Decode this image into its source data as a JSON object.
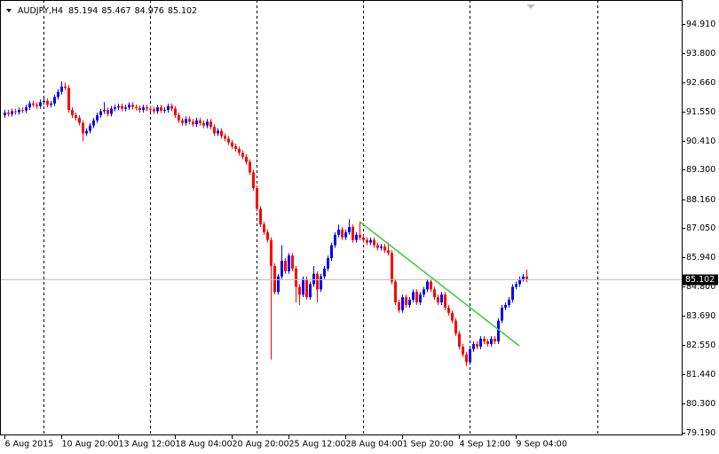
{
  "chart_data": {
    "type": "candlestick",
    "symbol": "AUDJPY,H4",
    "up_color": "#0000ff",
    "down_color": "#ff0000",
    "price_line_color": "#c0c0c0",
    "xlim": [
      -1.25,
      190.75
    ],
    "xticks": [
      {
        "value": 0,
        "label": "6 Aug 2015"
      },
      {
        "value": 16,
        "label": "10 Aug 20:00"
      },
      {
        "value": 32,
        "label": "13 Aug 12:00"
      },
      {
        "value": 48,
        "label": "18 Aug 04:00"
      },
      {
        "value": 64,
        "label": "20 Aug 20:00"
      },
      {
        "value": 80,
        "label": "25 Aug 12:00"
      },
      {
        "value": 96,
        "label": "28 Aug 04:00"
      },
      {
        "value": 112,
        "label": "1 Sep 20:00"
      },
      {
        "value": 128,
        "label": "4 Sep 12:00"
      },
      {
        "value": 144,
        "label": "9 Sep 04:00"
      }
    ],
    "ylim": [
      79.12,
      95.83
    ],
    "yticks": [
      {
        "value": 94.91,
        "label": "94.910"
      },
      {
        "value": 93.8,
        "label": "93.800"
      },
      {
        "value": 92.66,
        "label": "92.660"
      },
      {
        "value": 91.55,
        "label": "91.550"
      },
      {
        "value": 90.41,
        "label": "90.410"
      },
      {
        "value": 89.3,
        "label": "89.300"
      },
      {
        "value": 88.16,
        "label": "88.160"
      },
      {
        "value": 87.05,
        "label": "87.050"
      },
      {
        "value": 85.94,
        "label": "85.940"
      },
      {
        "value": 84.8,
        "label": "84.800"
      },
      {
        "value": 83.69,
        "label": "83.690"
      },
      {
        "value": 82.55,
        "label": "82.550"
      },
      {
        "value": 81.44,
        "label": "81.440"
      },
      {
        "value": 80.3,
        "label": "80.300"
      },
      {
        "value": 79.19,
        "label": "79.190"
      }
    ],
    "trendline": {
      "color": "#32cd32",
      "points": [
        [
          100,
          87.31
        ],
        [
          145,
          82.53
        ]
      ]
    },
    "candles": [
      [
        91.4,
        91.6,
        91.3,
        91.5
      ],
      [
        91.5,
        91.6,
        91.35,
        91.45
      ],
      [
        91.45,
        91.65,
        91.35,
        91.55
      ],
      [
        91.55,
        91.65,
        91.42,
        91.52
      ],
      [
        91.52,
        91.7,
        91.42,
        91.6
      ],
      [
        91.6,
        91.7,
        91.48,
        91.58
      ],
      [
        91.58,
        91.8,
        91.48,
        91.7
      ],
      [
        91.7,
        91.95,
        91.6,
        91.85
      ],
      [
        91.85,
        91.95,
        91.7,
        91.8
      ],
      [
        91.8,
        91.9,
        91.65,
        91.75
      ],
      [
        91.75,
        92.0,
        91.65,
        91.9
      ],
      [
        91.9,
        92.05,
        91.8,
        91.95
      ],
      [
        91.95,
        92.05,
        91.7,
        91.8
      ],
      [
        91.8,
        91.95,
        91.7,
        91.85
      ],
      [
        91.85,
        92.2,
        91.75,
        92.1
      ],
      [
        92.1,
        92.4,
        92.0,
        92.3
      ],
      [
        92.3,
        92.7,
        92.2,
        92.5
      ],
      [
        92.5,
        92.65,
        92.35,
        92.45
      ],
      [
        92.45,
        92.55,
        91.5,
        91.6
      ],
      [
        91.6,
        91.7,
        91.3,
        91.4
      ],
      [
        91.4,
        91.5,
        91.2,
        91.3
      ],
      [
        91.3,
        91.4,
        91.0,
        91.1
      ],
      [
        91.1,
        91.2,
        90.4,
        90.7
      ],
      [
        90.7,
        90.9,
        90.6,
        90.8
      ],
      [
        90.8,
        91.1,
        90.7,
        91.0
      ],
      [
        91.0,
        91.3,
        90.9,
        91.2
      ],
      [
        91.2,
        91.5,
        91.1,
        91.4
      ],
      [
        91.4,
        91.65,
        91.3,
        91.55
      ],
      [
        91.55,
        91.9,
        91.45,
        91.6
      ],
      [
        91.6,
        91.7,
        91.35,
        91.45
      ],
      [
        91.45,
        91.75,
        91.35,
        91.65
      ],
      [
        91.65,
        91.8,
        91.55,
        91.7
      ],
      [
        91.7,
        91.85,
        91.6,
        91.75
      ],
      [
        91.75,
        91.85,
        91.55,
        91.65
      ],
      [
        91.65,
        91.8,
        91.55,
        91.7
      ],
      [
        91.7,
        91.9,
        91.6,
        91.8
      ],
      [
        91.8,
        91.9,
        91.62,
        91.72
      ],
      [
        91.72,
        91.82,
        91.58,
        91.68
      ],
      [
        91.68,
        91.78,
        91.5,
        91.6
      ],
      [
        91.6,
        91.8,
        91.5,
        91.7
      ],
      [
        91.7,
        91.8,
        91.55,
        91.65
      ],
      [
        91.65,
        91.75,
        91.52,
        91.62
      ],
      [
        91.62,
        91.72,
        91.45,
        91.55
      ],
      [
        91.55,
        91.8,
        91.45,
        91.7
      ],
      [
        91.7,
        91.8,
        91.48,
        91.58
      ],
      [
        91.58,
        91.7,
        91.48,
        91.6
      ],
      [
        91.6,
        91.85,
        91.5,
        91.75
      ],
      [
        91.75,
        91.85,
        91.55,
        91.65
      ],
      [
        91.65,
        91.75,
        91.3,
        91.4
      ],
      [
        91.4,
        91.5,
        91.1,
        91.2
      ],
      [
        91.2,
        91.3,
        91.0,
        91.1
      ],
      [
        91.1,
        91.35,
        91.0,
        91.25
      ],
      [
        91.25,
        91.35,
        91.05,
        91.15
      ],
      [
        91.15,
        91.25,
        90.95,
        91.05
      ],
      [
        91.05,
        91.3,
        90.95,
        91.2
      ],
      [
        91.2,
        91.3,
        91.0,
        91.1
      ],
      [
        91.1,
        91.2,
        90.9,
        91.0
      ],
      [
        91.0,
        91.25,
        90.9,
        91.15
      ],
      [
        91.15,
        91.25,
        90.85,
        90.95
      ],
      [
        90.95,
        91.05,
        90.6,
        90.7
      ],
      [
        90.7,
        90.9,
        90.6,
        90.8
      ],
      [
        90.8,
        90.9,
        90.5,
        90.6
      ],
      [
        90.6,
        90.7,
        90.4,
        90.5
      ],
      [
        90.5,
        90.6,
        90.25,
        90.35
      ],
      [
        90.35,
        90.45,
        90.1,
        90.2
      ],
      [
        90.2,
        90.3,
        90.0,
        90.1
      ],
      [
        90.1,
        90.2,
        89.85,
        89.95
      ],
      [
        89.95,
        90.05,
        89.7,
        89.8
      ],
      [
        89.8,
        89.9,
        89.5,
        89.6
      ],
      [
        89.6,
        89.7,
        89.1,
        89.2
      ],
      [
        89.2,
        89.3,
        88.5,
        88.6
      ],
      [
        88.6,
        88.7,
        87.7,
        87.8
      ],
      [
        87.8,
        87.9,
        87.1,
        87.2
      ],
      [
        87.2,
        87.3,
        86.8,
        86.9
      ],
      [
        86.9,
        87.0,
        86.5,
        86.6
      ],
      [
        86.6,
        86.7,
        82.0,
        85.6
      ],
      [
        85.6,
        85.7,
        84.5,
        84.6
      ],
      [
        84.6,
        85.3,
        84.5,
        85.2
      ],
      [
        85.2,
        86.4,
        85.1,
        85.8
      ],
      [
        85.8,
        85.9,
        85.3,
        85.4
      ],
      [
        85.4,
        86.1,
        85.3,
        86.0
      ],
      [
        86.0,
        86.1,
        85.4,
        85.5
      ],
      [
        85.5,
        85.6,
        84.2,
        84.8
      ],
      [
        84.8,
        84.9,
        84.1,
        84.5
      ],
      [
        84.5,
        85.2,
        84.4,
        85.1
      ],
      [
        85.1,
        85.2,
        84.3,
        84.4
      ],
      [
        84.4,
        85.0,
        84.3,
        84.9
      ],
      [
        84.9,
        85.6,
        84.8,
        85.3
      ],
      [
        85.3,
        85.4,
        84.2,
        84.7
      ],
      [
        84.7,
        85.3,
        84.6,
        85.2
      ],
      [
        85.2,
        85.6,
        85.1,
        85.5
      ],
      [
        85.5,
        86.0,
        85.4,
        85.9
      ],
      [
        85.9,
        86.5,
        85.8,
        86.4
      ],
      [
        86.4,
        86.9,
        86.3,
        86.8
      ],
      [
        86.8,
        87.2,
        86.7,
        87.0
      ],
      [
        87.0,
        87.1,
        86.6,
        86.7
      ],
      [
        86.7,
        87.0,
        86.6,
        86.9
      ],
      [
        86.9,
        87.4,
        86.8,
        87.1
      ],
      [
        87.1,
        87.2,
        86.5,
        86.6
      ],
      [
        86.6,
        86.9,
        86.5,
        86.8
      ],
      [
        86.8,
        87.3,
        86.6,
        86.7
      ],
      [
        86.7,
        86.8,
        86.5,
        86.6
      ],
      [
        86.6,
        86.7,
        86.4,
        86.5
      ],
      [
        86.5,
        86.7,
        86.4,
        86.6
      ],
      [
        86.6,
        86.7,
        86.3,
        86.4
      ],
      [
        86.4,
        86.5,
        86.2,
        86.3
      ],
      [
        86.3,
        86.45,
        86.2,
        86.35
      ],
      [
        86.35,
        86.45,
        86.1,
        86.2
      ],
      [
        86.2,
        86.5,
        86.0,
        86.1
      ],
      [
        86.1,
        86.2,
        84.9,
        85.0
      ],
      [
        85.0,
        85.1,
        84.1,
        84.2
      ],
      [
        84.2,
        84.3,
        83.8,
        83.9
      ],
      [
        83.9,
        84.5,
        83.8,
        84.4
      ],
      [
        84.4,
        84.5,
        84.0,
        84.1
      ],
      [
        84.1,
        84.4,
        84.0,
        84.3
      ],
      [
        84.3,
        84.7,
        84.2,
        84.6
      ],
      [
        84.6,
        84.7,
        84.1,
        84.2
      ],
      [
        84.2,
        84.6,
        84.1,
        84.5
      ],
      [
        84.5,
        84.8,
        84.4,
        84.7
      ],
      [
        84.7,
        85.1,
        84.6,
        85.0
      ],
      [
        85.0,
        85.1,
        84.6,
        84.7
      ],
      [
        84.7,
        84.8,
        84.3,
        84.4
      ],
      [
        84.4,
        84.5,
        84.1,
        84.2
      ],
      [
        84.2,
        84.6,
        84.1,
        84.5
      ],
      [
        84.5,
        84.6,
        83.9,
        84.0
      ],
      [
        84.0,
        84.1,
        83.7,
        83.8
      ],
      [
        83.8,
        83.9,
        83.4,
        83.5
      ],
      [
        83.5,
        83.6,
        82.9,
        83.0
      ],
      [
        83.0,
        83.1,
        82.4,
        82.5
      ],
      [
        82.5,
        82.6,
        82.1,
        82.2
      ],
      [
        82.2,
        82.3,
        81.75,
        81.9
      ],
      [
        81.9,
        82.5,
        81.8,
        82.4
      ],
      [
        82.4,
        82.7,
        82.3,
        82.6
      ],
      [
        82.6,
        82.7,
        82.4,
        82.5
      ],
      [
        82.5,
        82.9,
        82.4,
        82.8
      ],
      [
        82.8,
        82.9,
        82.6,
        82.7
      ],
      [
        82.7,
        82.8,
        82.5,
        82.6
      ],
      [
        82.6,
        82.9,
        82.5,
        82.8
      ],
      [
        82.8,
        82.9,
        82.6,
        82.7
      ],
      [
        82.7,
        83.6,
        82.6,
        83.5
      ],
      [
        83.5,
        84.1,
        83.4,
        84.0
      ],
      [
        84.0,
        84.2,
        83.9,
        84.1
      ],
      [
        84.1,
        84.4,
        84.0,
        84.3
      ],
      [
        84.3,
        84.9,
        84.2,
        84.8
      ],
      [
        84.8,
        85.0,
        84.7,
        84.9
      ],
      [
        84.9,
        85.2,
        84.8,
        85.1
      ],
      [
        85.1,
        85.3,
        85.0,
        85.194
      ],
      [
        85.194,
        85.467,
        84.976,
        85.102
      ]
    ]
  }
}
